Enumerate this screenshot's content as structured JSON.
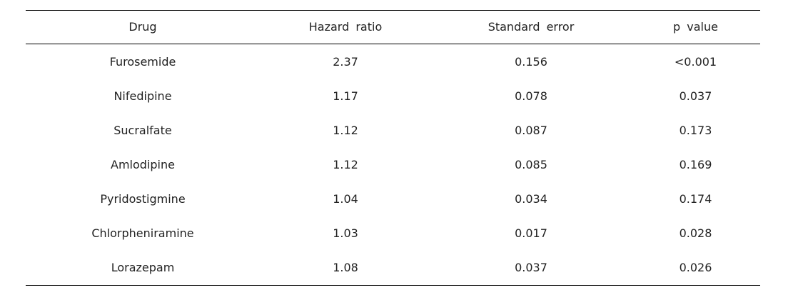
{
  "table": {
    "headers": [
      "Drug",
      "Hazard ratio",
      "Standard error",
      "p value"
    ],
    "rows": [
      [
        "Furosemide",
        "2.37",
        "0.156",
        "<0.001"
      ],
      [
        "Nifedipine",
        "1.17",
        "0.078",
        "0.037"
      ],
      [
        "Sucralfate",
        "1.12",
        "0.087",
        "0.173"
      ],
      [
        "Amlodipine",
        "1.12",
        "0.085",
        "0.169"
      ],
      [
        "Pyridostigmine",
        "1.04",
        "0.034",
        "0.174"
      ],
      [
        "Chlorpheniramine",
        "1.03",
        "0.017",
        "0.028"
      ],
      [
        "Lorazepam",
        "1.08",
        "0.037",
        "0.026"
      ]
    ]
  }
}
